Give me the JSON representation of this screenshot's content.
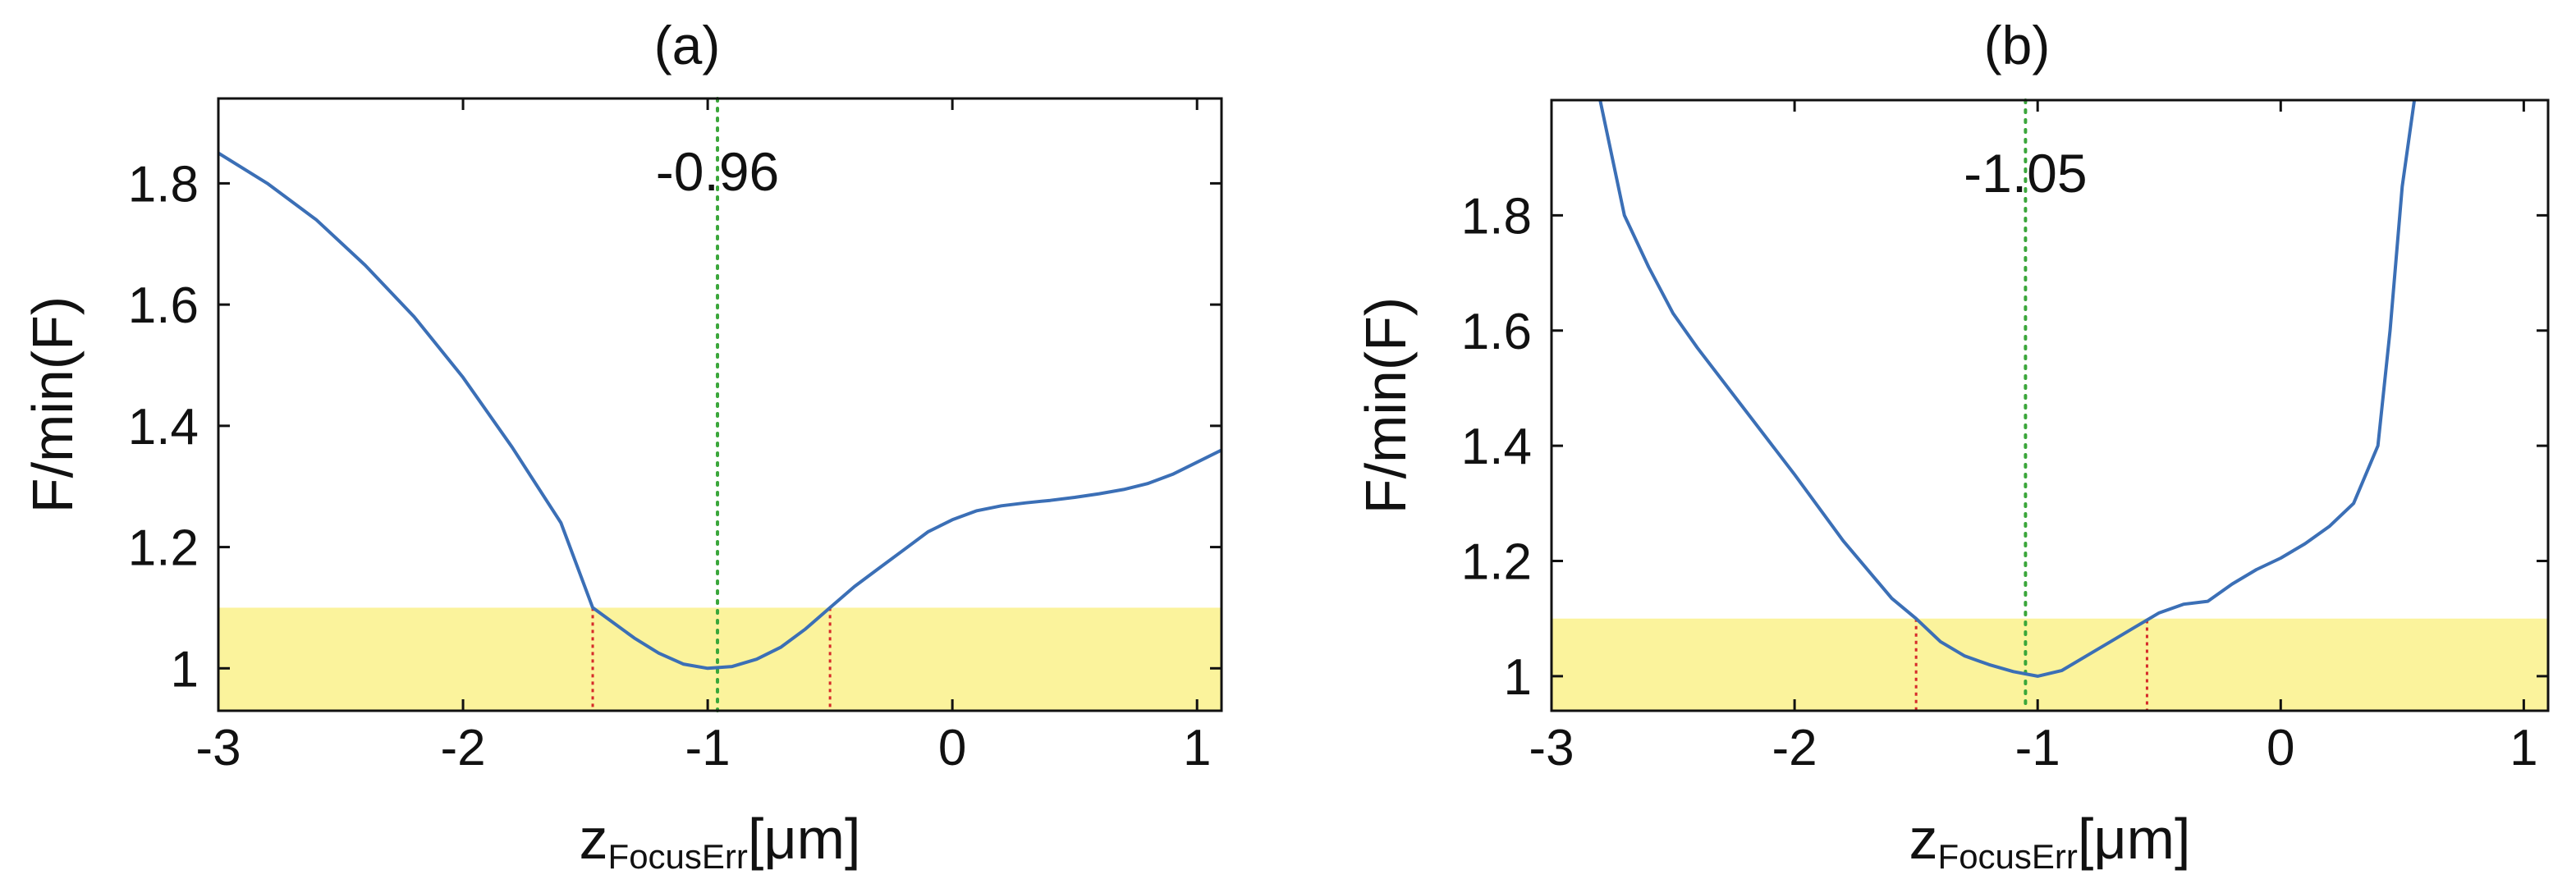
{
  "chart_data": [
    {
      "type": "line",
      "panel_label": "(a)",
      "xlabel_main": "z",
      "xlabel_sub": "FocusErr",
      "xlabel_unit": "[μm]",
      "ylabel": "F/min(F)",
      "xlim": [
        -3,
        1.1
      ],
      "ylim": [
        0.93,
        1.94
      ],
      "xticks": [
        -3,
        -2,
        -1,
        0,
        1
      ],
      "yticks": [
        1,
        1.2,
        1.4,
        1.6,
        1.8
      ],
      "grid": false,
      "threshold_band": [
        0.93,
        1.1
      ],
      "optimum_x": -0.96,
      "optimum_label": "-0.96",
      "interval_marks": [
        -1.47,
        -0.5
      ],
      "series": [
        {
          "x": [
            -3.0,
            -2.8,
            -2.6,
            -2.4,
            -2.2,
            -2.0,
            -1.8,
            -1.6,
            -1.47,
            -1.3,
            -1.2,
            -1.1,
            -1.0,
            -0.9,
            -0.8,
            -0.7,
            -0.6,
            -0.5,
            -0.4,
            -0.3,
            -0.2,
            -0.1,
            0.0,
            0.1,
            0.2,
            0.3,
            0.4,
            0.5,
            0.6,
            0.7,
            0.8,
            0.9,
            1.0,
            1.1
          ],
          "y": [
            1.85,
            1.8,
            1.74,
            1.665,
            1.58,
            1.48,
            1.365,
            1.24,
            1.1,
            1.05,
            1.025,
            1.007,
            1.0,
            1.003,
            1.015,
            1.035,
            1.065,
            1.1,
            1.135,
            1.165,
            1.195,
            1.225,
            1.245,
            1.26,
            1.268,
            1.273,
            1.277,
            1.282,
            1.288,
            1.295,
            1.305,
            1.32,
            1.34,
            1.36
          ]
        }
      ]
    },
    {
      "type": "line",
      "panel_label": "(b)",
      "xlabel_main": "z",
      "xlabel_sub": "FocusErr",
      "xlabel_unit": "[μm]",
      "ylabel": "F/min(F)",
      "xlim": [
        -3,
        1.1
      ],
      "ylim": [
        0.94,
        2.0
      ],
      "xticks": [
        -3,
        -2,
        -1,
        0,
        1
      ],
      "yticks": [
        1,
        1.2,
        1.4,
        1.6,
        1.8
      ],
      "grid": false,
      "threshold_band": [
        0.94,
        1.1
      ],
      "optimum_x": -1.05,
      "optimum_label": "-1.05",
      "interval_marks": [
        -1.5,
        -0.55
      ],
      "series": [
        {
          "x": [
            -2.8,
            -2.75,
            -2.7,
            -2.6,
            -2.5,
            -2.4,
            -2.2,
            -2.0,
            -1.8,
            -1.6,
            -1.5,
            -1.4,
            -1.3,
            -1.2,
            -1.1,
            -1.0,
            -0.9,
            -0.8,
            -0.7,
            -0.6,
            -0.5,
            -0.4,
            -0.3,
            -0.2,
            -0.1,
            0.0,
            0.1,
            0.2,
            0.3,
            0.4,
            0.45,
            0.5,
            0.55
          ],
          "y": [
            2.0,
            1.9,
            1.8,
            1.71,
            1.63,
            1.57,
            1.46,
            1.35,
            1.235,
            1.135,
            1.1,
            1.06,
            1.035,
            1.02,
            1.008,
            1.0,
            1.01,
            1.035,
            1.06,
            1.085,
            1.11,
            1.125,
            1.13,
            1.16,
            1.185,
            1.205,
            1.23,
            1.26,
            1.3,
            1.4,
            1.6,
            1.85,
            2.0
          ]
        }
      ]
    }
  ],
  "colors": {
    "curve": "#3b6fb6",
    "band": "#fbf39c",
    "optimum_line": "#3aa63a",
    "interval_line": "#d62a2a",
    "axes": "#111111"
  }
}
